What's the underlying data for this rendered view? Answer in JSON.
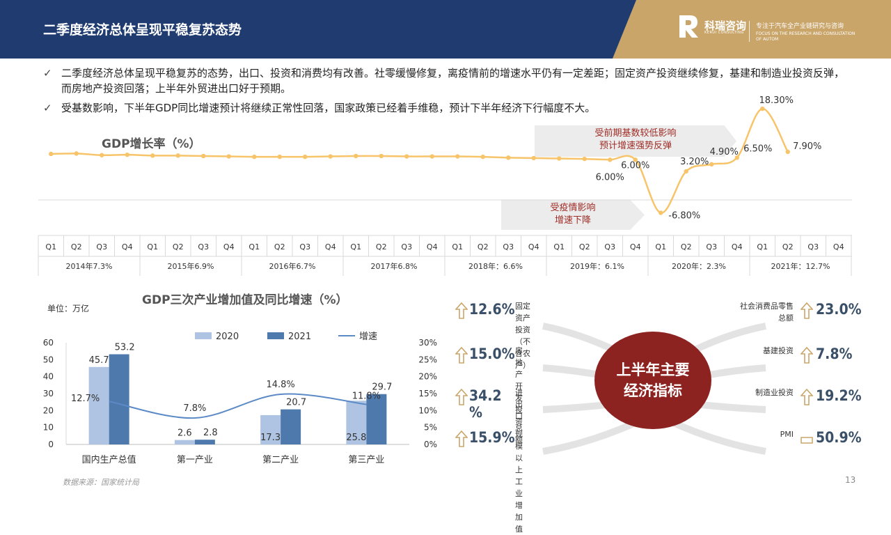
{
  "header": {
    "title": "二季度经济总体呈现平稳复苏态势",
    "logo_cn": "科瑞咨询",
    "logo_en": "KERUI CONSULTING",
    "tagline": "专注于汽车全产业链研究与咨询",
    "tagline_en": "FOCUS ON THE RESEARCH AND CONSULTATION OF AUTOM"
  },
  "bullets": [
    "二季度经济总体呈现平稳复苏的态势，出口、投资和消费均有改善。社零缓慢修复，离疫情前的增速水平仍有一定差距；固定资产投资继续修复，基建和制造业投资反弹，而房地产投资回落；上半年外贸进出口好于预期。",
    "受基数影响，下半年GDP同比增速预计将继续正常性回落，国家政策已经着手维稳，预计下半年经济下行幅度不大。"
  ],
  "chart_data": [
    {
      "type": "line",
      "title": "GDP增长率（%）",
      "quarters": [
        "Q1",
        "Q2",
        "Q3",
        "Q4"
      ],
      "year_groups": [
        "2014年7.3%",
        "2015年6.9%",
        "2016年6.7%",
        "2017年6.8%",
        "2018年：6.6%",
        "2019年：6.1%",
        "2020年：2.3%",
        "2021年：12.7%"
      ],
      "series": [
        {
          "values": [
            7.4,
            7.5,
            7.1,
            7.2,
            7.0,
            7.0,
            6.9,
            6.8,
            6.7,
            6.7,
            6.7,
            6.8,
            6.9,
            6.9,
            6.8,
            6.8,
            6.8,
            6.7,
            6.5,
            6.4,
            6.3,
            6.2,
            6.0,
            6.0,
            -6.8,
            3.2,
            4.9,
            6.5,
            18.3,
            7.9
          ]
        }
      ],
      "data_labels": [
        {
          "index": 22,
          "text": "6.00%"
        },
        {
          "index": 23,
          "text": "6.00%"
        },
        {
          "index": 24,
          "text": "-6.80%"
        },
        {
          "index": 25,
          "text": "3.20%"
        },
        {
          "index": 26,
          "text": "4.90%"
        },
        {
          "index": 27,
          "text": "6.50%"
        },
        {
          "index": 28,
          "text": "18.30%"
        },
        {
          "index": 29,
          "text": "7.90%"
        }
      ],
      "annotations": [
        "受前期基数较低影响\n预计增速强势反弹",
        "受疫情影响\n增速下降"
      ]
    },
    {
      "type": "bar",
      "title": "GDP三次产业增加值及同比增速（%）",
      "unit": "单位：万亿",
      "categories": [
        "国内生产总值",
        "第一产业",
        "第二产业",
        "第三产业"
      ],
      "series": [
        {
          "name": "2020",
          "values": [
            45.7,
            2.6,
            17.3,
            25.8
          ],
          "color": "#aec4e2"
        },
        {
          "name": "2021",
          "values": [
            53.2,
            2.8,
            20.7,
            29.7
          ],
          "color": "#4e79ac"
        },
        {
          "name": "增速",
          "type": "line",
          "values": [
            12.7,
            7.8,
            14.8,
            11.8
          ],
          "labels": [
            "12.7%",
            "7.8%",
            "14.8%",
            "11.8%"
          ],
          "color": "#5b8ac6"
        }
      ],
      "ylim": [
        0,
        60
      ],
      "yticks": [
        "0",
        "10",
        "20",
        "30",
        "40",
        "50",
        "60"
      ],
      "y2lim": [
        0,
        30
      ],
      "y2ticks": [
        "0%",
        "5%",
        "10%",
        "15%",
        "20%",
        "25%",
        "30%"
      ],
      "legend_position": "top"
    }
  ],
  "indicators": {
    "center_line1": "上半年主要",
    "center_line2": "经济指标",
    "left": [
      {
        "value": "12.6%",
        "label": "固定资产投资\n（不含农户）"
      },
      {
        "value": "15.0%",
        "label": "房地产开发投资"
      },
      {
        "value": "34.2 %",
        "label": "进出口总额"
      },
      {
        "value": "15.9%",
        "label": "规模以上工业增\n加值"
      }
    ],
    "right": [
      {
        "value": "23.0%",
        "label": "社会消费品零售\n总额"
      },
      {
        "value": "7.8%",
        "label": "基建投资"
      },
      {
        "value": "19.2%",
        "label": "制造业投资"
      },
      {
        "value": "50.9%",
        "label": "PMI"
      }
    ]
  },
  "footer": {
    "source": "数据来源：国家统计局",
    "page": "13"
  }
}
